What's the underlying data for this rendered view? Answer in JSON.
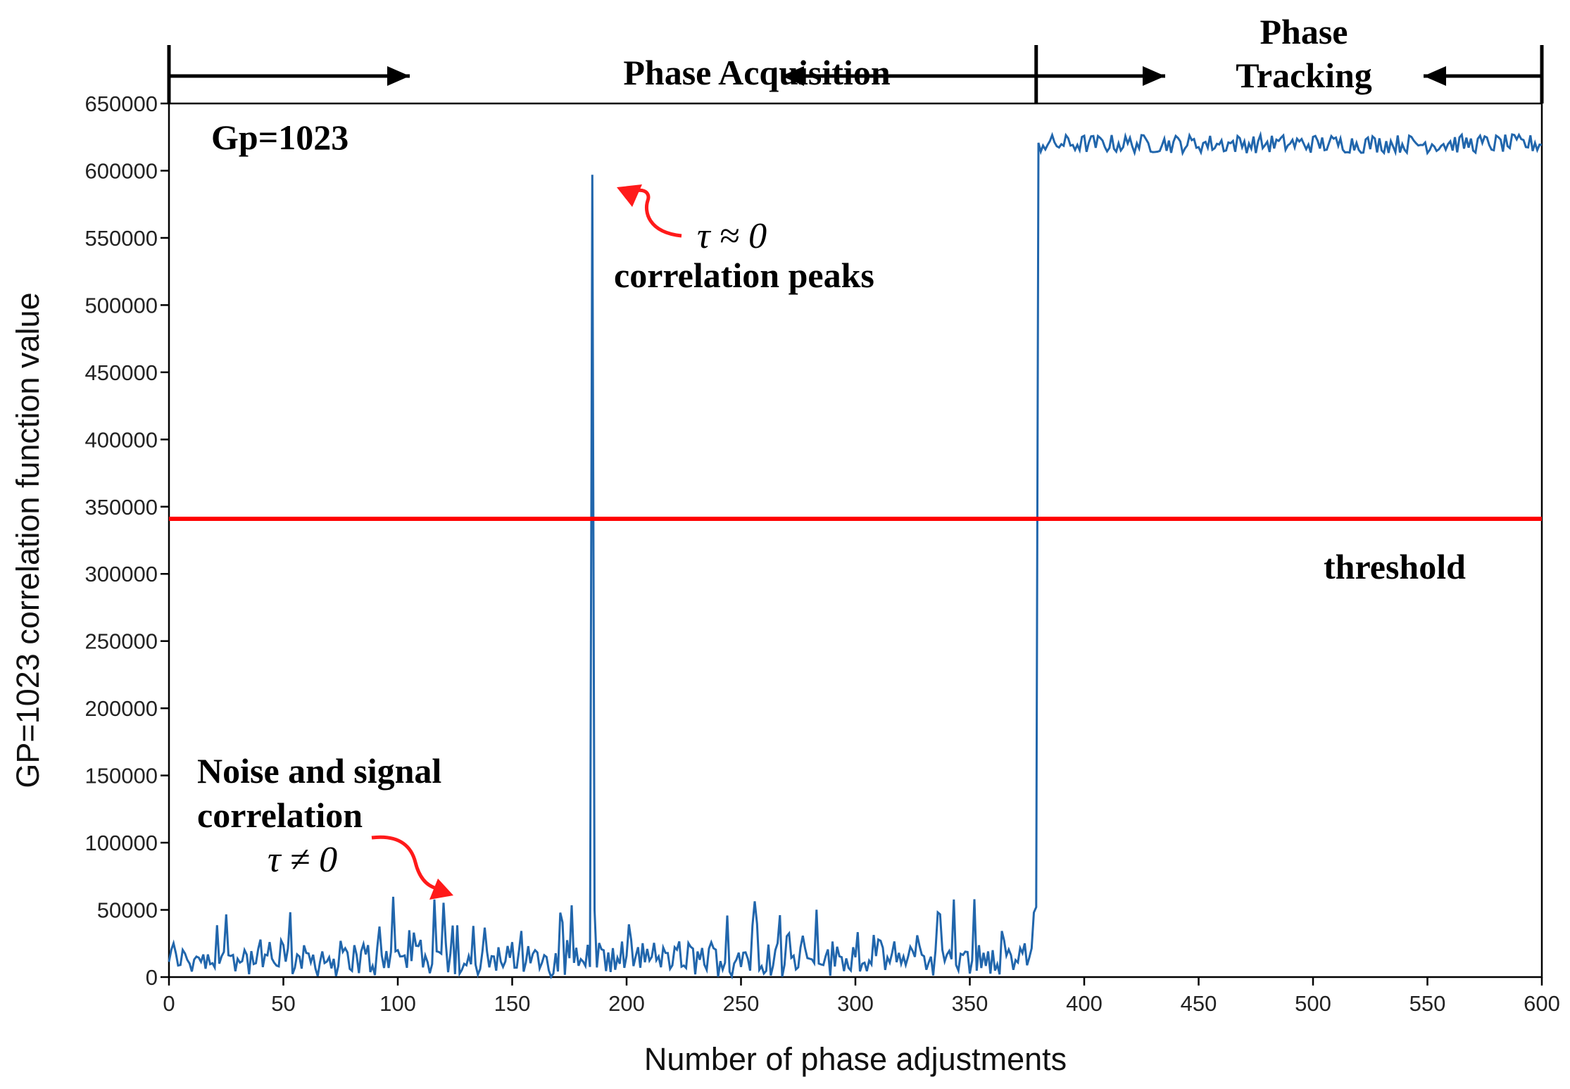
{
  "chart_data": {
    "type": "line",
    "title": "",
    "xlabel": "Number of phase adjustments",
    "ylabel": "GP=1023 correlation function value",
    "xlim": [
      0,
      600
    ],
    "ylim": [
      0,
      650000
    ],
    "xticks": [
      "0",
      "50",
      "100",
      "150",
      "200",
      "250",
      "300",
      "350",
      "400",
      "450",
      "500",
      "550",
      "600"
    ],
    "yticks": [
      "0",
      "50000",
      "100000",
      "150000",
      "200000",
      "250000",
      "300000",
      "350000",
      "400000",
      "450000",
      "500000",
      "550000",
      "600000",
      "650000"
    ],
    "series": [
      {
        "name": "GP=1023 correlation",
        "color": "#2166ac",
        "description": "noise-level values (0-60000) for x in 0-379, single spike to ~597000 at x=185, jump to ~620000 for x >= 380",
        "acquisition_noise_range": [
          0,
          60000
        ],
        "peak": {
          "x": 185,
          "y": 597000
        },
        "step_x": 380,
        "tracking_level": 620000,
        "tracking_jitter": 7000
      }
    ],
    "threshold": {
      "value": 341000,
      "color": "#ff0000",
      "label": "threshold"
    },
    "phase_boundaries": [
      0,
      379,
      600
    ]
  },
  "annotations": {
    "acquisition_label": "Phase Acquisition",
    "tracking_label_line1": "Phase",
    "tracking_label_line2": "Tracking",
    "gp_label": "Gp=1023",
    "peak_tau": "τ ≈ 0",
    "peak_label": "correlation peaks",
    "noise_line1": "Noise and signal",
    "noise_line2": "correlation",
    "noise_tau": "τ ≠ 0",
    "threshold_label": "threshold"
  },
  "colors": {
    "series": "#2166ac",
    "threshold": "#ff0000",
    "arrow_red": "#ff1a1a",
    "axis": "#000000"
  }
}
